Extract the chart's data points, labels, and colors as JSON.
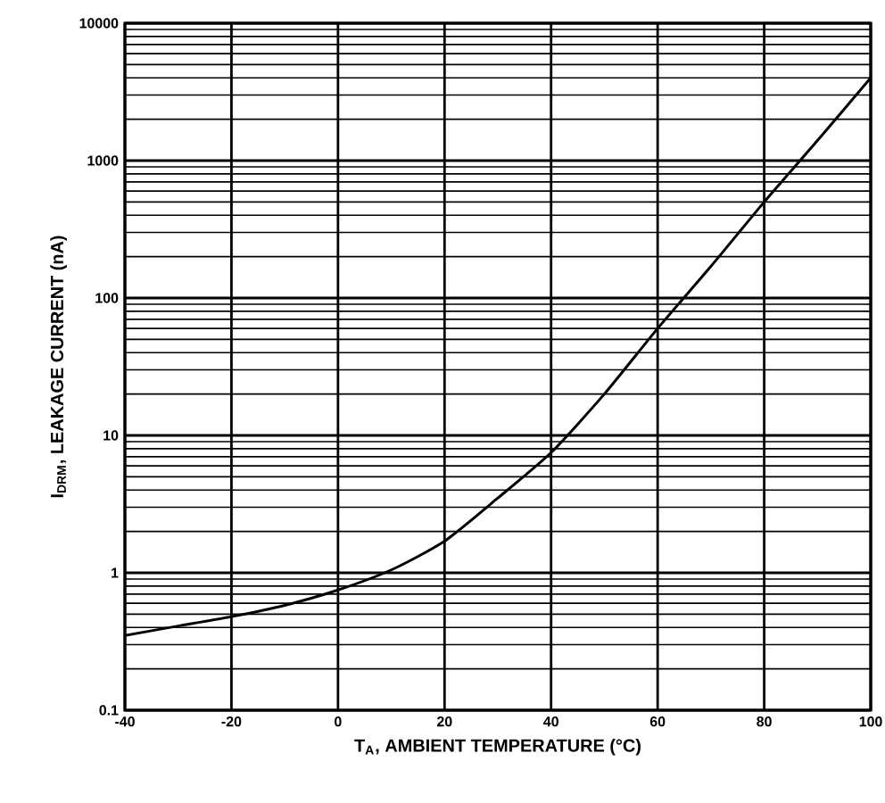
{
  "chart_data": {
    "type": "line",
    "xlabel": "T$_{A}$, AMBIENT TEMPERATURE (°C)",
    "ylabel": "I$_{DRM}$, LEAKAGE CURRENT (nA)",
    "log": "y",
    "grid": true,
    "xlim": [
      -40,
      100
    ],
    "ylim": [
      0.1,
      10000
    ],
    "xticks": [
      -40,
      -20,
      0,
      20,
      40,
      60,
      80,
      100
    ],
    "yticks": [
      0.1,
      1,
      10,
      100,
      1000,
      10000
    ],
    "x": [
      -40,
      -30,
      -20,
      -10,
      0,
      10,
      20,
      30,
      40,
      50,
      60,
      70,
      80,
      90,
      100
    ],
    "series": [
      {
        "color": "#000000",
        "values": [
          0.35,
          0.41,
          0.48,
          0.58,
          0.75,
          1.05,
          1.7,
          3.5,
          7.5,
          20,
          60,
          170,
          500,
          1400,
          4000
        ]
      }
    ]
  }
}
